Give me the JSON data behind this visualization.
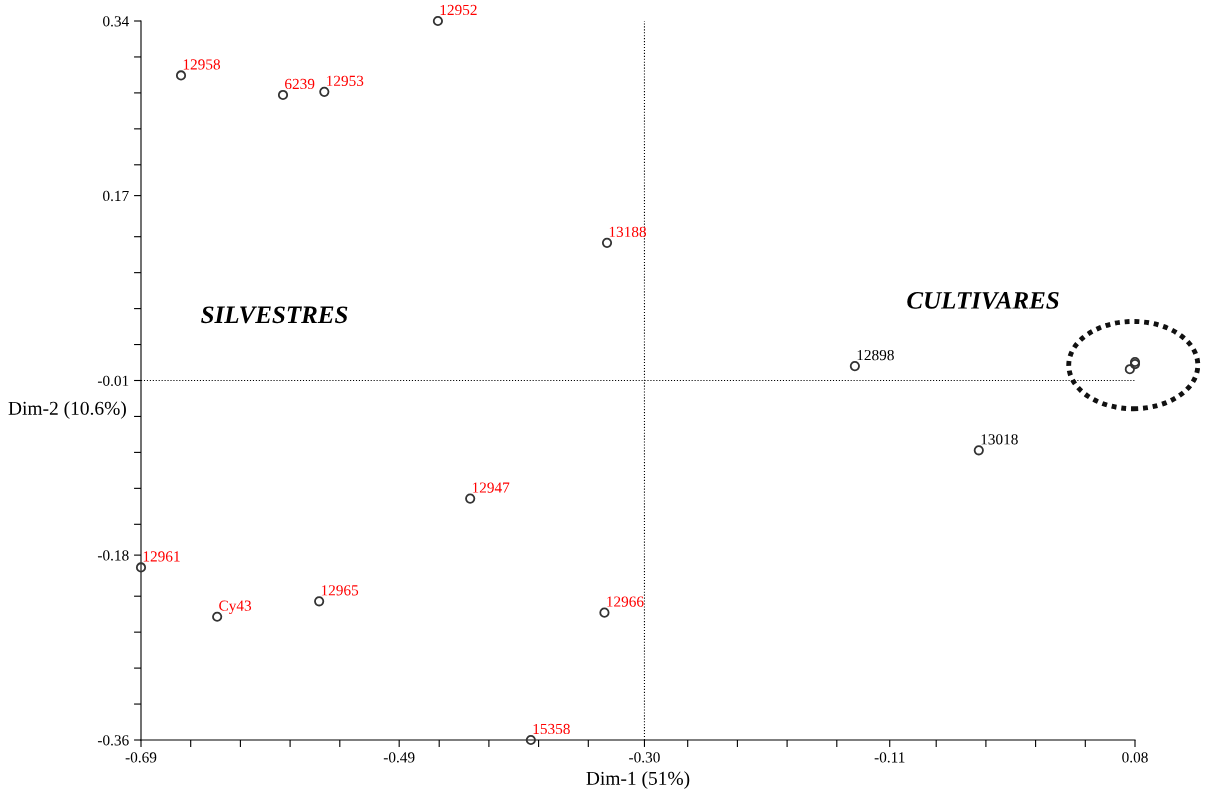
{
  "chart_data": {
    "type": "scatter",
    "xlabel": "Dim-1 (51%)",
    "ylabel": "Dim-2 (10.6%)",
    "xlim": [
      -0.69,
      0.08
    ],
    "ylim": [
      -0.36,
      0.34
    ],
    "xticks": [
      -0.69,
      {
        "value": -0.6515,
        "label": null
      },
      {
        "value": -0.613,
        "label": null
      },
      {
        "value": -0.5745,
        "label": null
      },
      {
        "value": -0.536,
        "label": null
      },
      {
        "value": -0.49,
        "label": "-0.49"
      },
      {
        "value": -0.459,
        "label": null
      },
      {
        "value": -0.4205,
        "label": null
      },
      {
        "value": -0.382,
        "label": null
      },
      {
        "value": -0.3435,
        "label": null
      },
      {
        "value": -0.3,
        "label": "-0.30"
      },
      {
        "value": -0.2665,
        "label": null
      },
      {
        "value": -0.228,
        "label": null
      },
      {
        "value": -0.1895,
        "label": null
      },
      {
        "value": -0.151,
        "label": null
      },
      {
        "value": -0.11,
        "label": "-0.11"
      },
      {
        "value": -0.074,
        "label": null
      },
      {
        "value": -0.0355,
        "label": null
      },
      {
        "value": 0.003,
        "label": null
      },
      {
        "value": 0.0415,
        "label": null
      },
      0.08
    ],
    "yticks": [
      0.34,
      {
        "value": 0.305,
        "label": null
      },
      {
        "value": 0.27,
        "label": null
      },
      {
        "value": 0.235,
        "label": null
      },
      {
        "value": 0.2,
        "label": null
      },
      {
        "value": 0.17,
        "label": "0.17"
      },
      {
        "value": 0.13,
        "label": null
      },
      {
        "value": 0.095,
        "label": null
      },
      {
        "value": 0.06,
        "label": null
      },
      {
        "value": 0.025,
        "label": null
      },
      -0.01,
      {
        "value": -0.045,
        "label": null
      },
      {
        "value": -0.08,
        "label": null
      },
      {
        "value": -0.115,
        "label": null
      },
      {
        "value": -0.15,
        "label": null
      },
      {
        "value": -0.18,
        "label": "-0.18"
      },
      {
        "value": -0.22,
        "label": null
      },
      {
        "value": -0.255,
        "label": null
      },
      {
        "value": -0.29,
        "label": null
      },
      {
        "value": -0.325,
        "label": null
      },
      -0.36
    ],
    "grid": false,
    "marker": "circle",
    "ref_lines": [
      {
        "axis": "x",
        "value": -0.3,
        "line_style": "dotted",
        "color": "#000000"
      },
      {
        "axis": "y",
        "value": -0.01,
        "line_style": "dotted",
        "color": "#000000"
      }
    ],
    "annotations": [
      "SILVESTRES",
      "CULTIVARES",
      {
        "text": "12952",
        "x": -0.46,
        "y": 0.34
      },
      {
        "text": "12958",
        "x": -0.659,
        "y": 0.287
      },
      {
        "text": "6239",
        "x": -0.58,
        "y": 0.268
      },
      {
        "text": "12953",
        "x": -0.548,
        "y": 0.271
      },
      {
        "text": "13188",
        "x": -0.329,
        "y": 0.124
      },
      {
        "text": "12947",
        "x": -0.435,
        "y": -0.125
      },
      {
        "text": "12961",
        "x": -0.69,
        "y": -0.192
      },
      {
        "text": "12965",
        "x": -0.552,
        "y": -0.225
      },
      {
        "text": "Cy43",
        "x": -0.631,
        "y": -0.24
      },
      {
        "text": "12966",
        "x": -0.331,
        "y": -0.236
      },
      {
        "text": "15358",
        "x": -0.388,
        "y": -0.36
      },
      {
        "text": "12898",
        "x": -0.137,
        "y": 0.004
      },
      {
        "text": "13018",
        "x": -0.041,
        "y": -0.078
      }
    ],
    "series": [
      {
        "color": "#333333",
        "x": [
          -0.46,
          -0.659,
          -0.58,
          -0.548,
          -0.329,
          -0.435,
          -0.69,
          -0.552,
          -0.631,
          -0.331,
          -0.388
        ],
        "values": [
          0.34,
          0.287,
          0.268,
          0.271,
          0.124,
          -0.125,
          -0.192,
          -0.225,
          -0.24,
          -0.236,
          -0.36
        ]
      },
      {
        "color": "#333333",
        "x": [
          -0.137,
          -0.041,
          0.076,
          0.08,
          0.08
        ],
        "values": [
          0.004,
          -0.078,
          0.001,
          0.008,
          0.006
        ]
      }
    ]
  }
}
